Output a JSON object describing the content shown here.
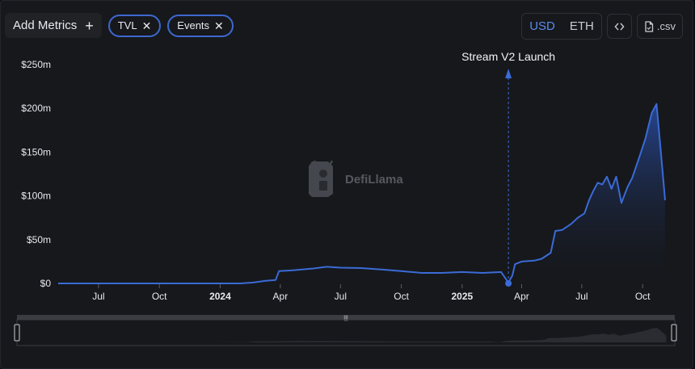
{
  "toolbar": {
    "add_metrics_label": "Add Metrics",
    "plus_icon": "plus-icon",
    "chips": [
      {
        "label": "TVL"
      },
      {
        "label": "Events"
      }
    ],
    "currency_options": [
      "USD",
      "ETH"
    ],
    "currency_selected": "USD",
    "embed_icon": "code-brackets-icon",
    "csv_label": ".csv",
    "csv_icon": "file-icon"
  },
  "watermark": {
    "text": "DefiLlama",
    "icon": "llama-logo-icon"
  },
  "colors": {
    "line": "#3a6bd6",
    "accent": "#5b8bea",
    "background": "#16181c"
  },
  "chart_data": {
    "type": "area",
    "series": [
      {
        "name": "TVL"
      }
    ],
    "ylabel_ticks": [
      "$0",
      "$50m",
      "$100m",
      "$150m",
      "$200m",
      "$250m"
    ],
    "ylim": [
      0,
      250
    ],
    "xlim": [
      "2023-05-01",
      "2025-11-15"
    ],
    "x_ticks": [
      {
        "label": "Jul",
        "date": "2023-07-01",
        "bold": false
      },
      {
        "label": "Oct",
        "date": "2023-10-01",
        "bold": false
      },
      {
        "label": "2024",
        "date": "2024-01-01",
        "bold": true
      },
      {
        "label": "Apr",
        "date": "2024-04-01",
        "bold": false
      },
      {
        "label": "Jul",
        "date": "2024-07-01",
        "bold": false
      },
      {
        "label": "Oct",
        "date": "2024-10-01",
        "bold": false
      },
      {
        "label": "2025",
        "date": "2025-01-01",
        "bold": true
      },
      {
        "label": "Apr",
        "date": "2025-04-01",
        "bold": false
      },
      {
        "label": "Jul",
        "date": "2025-07-01",
        "bold": false
      },
      {
        "label": "Oct",
        "date": "2025-10-01",
        "bold": false
      }
    ],
    "points": [
      [
        "2023-05-01",
        0
      ],
      [
        "2023-08-01",
        0
      ],
      [
        "2023-11-01",
        0
      ],
      [
        "2024-02-01",
        0
      ],
      [
        "2024-02-20",
        1
      ],
      [
        "2024-03-10",
        3
      ],
      [
        "2024-03-25",
        4
      ],
      [
        "2024-03-30",
        14
      ],
      [
        "2024-04-20",
        15
      ],
      [
        "2024-05-20",
        17
      ],
      [
        "2024-06-10",
        19
      ],
      [
        "2024-07-01",
        18
      ],
      [
        "2024-08-01",
        17.5
      ],
      [
        "2024-09-01",
        16
      ],
      [
        "2024-10-01",
        14
      ],
      [
        "2024-11-01",
        12
      ],
      [
        "2024-12-01",
        12
      ],
      [
        "2025-01-01",
        13
      ],
      [
        "2025-02-01",
        12
      ],
      [
        "2025-03-01",
        13
      ],
      [
        "2025-03-12",
        1
      ],
      [
        "2025-03-18",
        9
      ],
      [
        "2025-03-22",
        22
      ],
      [
        "2025-04-01",
        25
      ],
      [
        "2025-04-20",
        26
      ],
      [
        "2025-05-01",
        28
      ],
      [
        "2025-05-15",
        35
      ],
      [
        "2025-05-22",
        60
      ],
      [
        "2025-06-01",
        61
      ],
      [
        "2025-06-15",
        68
      ],
      [
        "2025-06-25",
        75
      ],
      [
        "2025-07-05",
        80
      ],
      [
        "2025-07-12",
        95
      ],
      [
        "2025-07-18",
        105
      ],
      [
        "2025-07-25",
        115
      ],
      [
        "2025-08-01",
        113
      ],
      [
        "2025-08-08",
        122
      ],
      [
        "2025-08-15",
        108
      ],
      [
        "2025-08-22",
        122
      ],
      [
        "2025-08-30",
        92
      ],
      [
        "2025-09-08",
        110
      ],
      [
        "2025-09-15",
        120
      ],
      [
        "2025-09-25",
        142
      ],
      [
        "2025-10-05",
        165
      ],
      [
        "2025-10-10",
        180
      ],
      [
        "2025-10-15",
        195
      ],
      [
        "2025-10-22",
        205
      ],
      [
        "2025-10-28",
        155
      ],
      [
        "2025-11-04",
        95
      ]
    ],
    "annotation": {
      "label": "Stream V2 Launch",
      "date": "2025-03-12",
      "value": 0
    },
    "range_slider": {
      "handle_icon": "grip-icon"
    }
  }
}
